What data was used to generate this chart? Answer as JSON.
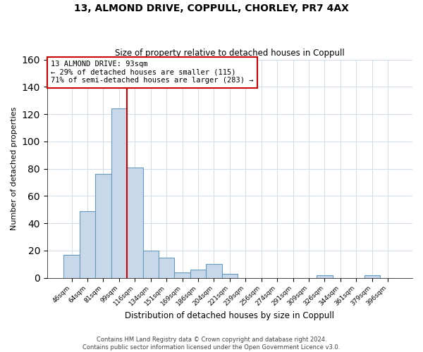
{
  "title": "13, ALMOND DRIVE, COPPULL, CHORLEY, PR7 4AX",
  "subtitle": "Size of property relative to detached houses in Coppull",
  "xlabel": "Distribution of detached houses by size in Coppull",
  "ylabel": "Number of detached properties",
  "bar_labels": [
    "46sqm",
    "64sqm",
    "81sqm",
    "99sqm",
    "116sqm",
    "134sqm",
    "151sqm",
    "169sqm",
    "186sqm",
    "204sqm",
    "221sqm",
    "239sqm",
    "256sqm",
    "274sqm",
    "291sqm",
    "309sqm",
    "326sqm",
    "344sqm",
    "361sqm",
    "379sqm",
    "396sqm"
  ],
  "bar_values": [
    17,
    49,
    76,
    124,
    81,
    20,
    15,
    4,
    6,
    10,
    3,
    0,
    0,
    0,
    0,
    0,
    2,
    0,
    0,
    2,
    0
  ],
  "bar_color": "#c8d8eb",
  "bar_edge_color": "#6699bb",
  "vline_x": 3.5,
  "vline_color": "#cc0000",
  "annotation_line1": "13 ALMOND DRIVE: 93sqm",
  "annotation_line2": "← 29% of detached houses are smaller (115)",
  "annotation_line3": "71% of semi-detached houses are larger (283) →",
  "ylim": [
    0,
    160
  ],
  "yticks": [
    0,
    20,
    40,
    60,
    80,
    100,
    120,
    140,
    160
  ],
  "background_color": "#ffffff",
  "grid_color": "#d0dce8",
  "footer_line1": "Contains HM Land Registry data © Crown copyright and database right 2024.",
  "footer_line2": "Contains public sector information licensed under the Open Government Licence v3.0."
}
